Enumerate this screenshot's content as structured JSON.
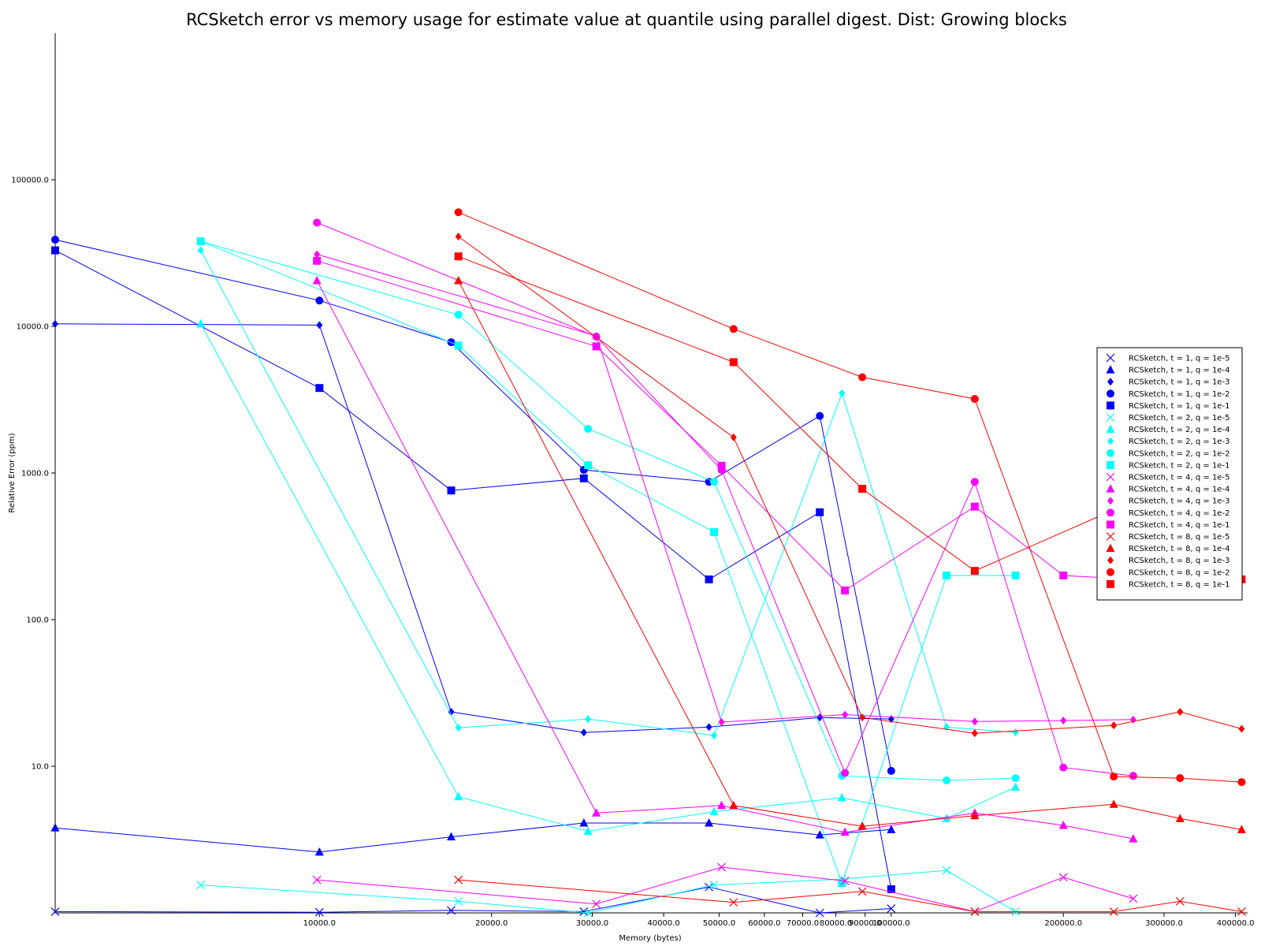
{
  "chart_data": {
    "type": "line",
    "title": "RCSketch error vs memory usage for estimate value at quantile using parallel digest. Dist: Growing blocks",
    "xlabel": "Memory (bytes)",
    "ylabel": "Relative Error (ppm)",
    "xscale": "log",
    "yscale": "log",
    "xlim": [
      3450,
      420000
    ],
    "ylim": [
      1,
      1000000
    ],
    "x_ticks": [
      {
        "value": 10000,
        "label": "10000.0"
      },
      {
        "value": 20000,
        "label": "20000.0"
      },
      {
        "value": 30000,
        "label": "30000.0"
      },
      {
        "value": 40000,
        "label": "40000.0"
      },
      {
        "value": 50000,
        "label": "50000.0"
      },
      {
        "value": 60000,
        "label": "60000.0"
      },
      {
        "value": 70000,
        "label": "70000.0"
      },
      {
        "value": 80000,
        "label": "80000.0"
      },
      {
        "value": 90000,
        "label": "90000.0"
      },
      {
        "value": 100000,
        "label": "100000.0"
      },
      {
        "value": 200000,
        "label": "200000.0"
      },
      {
        "value": 300000,
        "label": "300000.0"
      },
      {
        "value": 400000,
        "label": "400000.0"
      }
    ],
    "y_ticks": [
      {
        "value": 10,
        "label": "10.0"
      },
      {
        "value": 100,
        "label": "100.0"
      },
      {
        "value": 1000,
        "label": "1000.0"
      },
      {
        "value": 10000,
        "label": "10000.0"
      },
      {
        "value": 100000,
        "label": "100000.0"
      }
    ],
    "grid": false,
    "legend_position": "right",
    "series": [
      {
        "name": "RCSketch, t = 1, q = 1e-5",
        "color": "#0000ff",
        "marker": "x",
        "x": [
          3450,
          10000,
          17000,
          29000,
          48000,
          75000,
          100000
        ],
        "y": [
          1.02,
          1.01,
          1.04,
          1.02,
          1.5,
          1.0,
          1.07
        ]
      },
      {
        "name": "RCSketch, t = 1, q = 1e-4",
        "color": "#0000ff",
        "marker": "triangle",
        "x": [
          3450,
          10000,
          17000,
          29000,
          48000,
          75000,
          100000
        ],
        "y": [
          3.8,
          2.6,
          3.3,
          4.1,
          4.1,
          3.4,
          3.7
        ]
      },
      {
        "name": "RCSketch, t = 1, q = 1e-3",
        "color": "#0000ff",
        "marker": "diamond",
        "x": [
          3450,
          10000,
          17000,
          29000,
          48000,
          75000,
          100000
        ],
        "y": [
          10400,
          10200,
          23.5,
          17,
          18.5,
          21.5,
          21
        ]
      },
      {
        "name": "RCSketch, t = 1, q = 1e-2",
        "color": "#0000ff",
        "marker": "circle",
        "x": [
          3450,
          10000,
          17000,
          29000,
          48000,
          75000,
          100000
        ],
        "y": [
          39000,
          15000,
          7800,
          1050,
          870,
          2450,
          9.3
        ]
      },
      {
        "name": "RCSketch, t = 1, q = 1e-1",
        "color": "#0000ff",
        "marker": "square",
        "x": [
          3450,
          10000,
          17000,
          29000,
          48000,
          75000,
          100000
        ],
        "y": [
          33000,
          3800,
          760,
          920,
          188,
          540,
          1.45
        ]
      },
      {
        "name": "RCSketch, t = 2, q = 1e-5",
        "color": "#00ffff",
        "marker": "x",
        "x": [
          6200,
          17500,
          29500,
          49000,
          82000,
          125000,
          165000
        ],
        "y": [
          1.55,
          1.2,
          1.0,
          1.55,
          1.7,
          1.95,
          1.02
        ]
      },
      {
        "name": "RCSketch, t = 2, q = 1e-4",
        "color": "#00ffff",
        "marker": "triangle",
        "x": [
          6200,
          17500,
          29500,
          49000,
          82000,
          125000,
          165000
        ],
        "y": [
          10400,
          6.2,
          3.6,
          4.9,
          6.1,
          4.4,
          7.2
        ]
      },
      {
        "name": "RCSketch, t = 2, q = 1e-3",
        "color": "#00ffff",
        "marker": "diamond",
        "x": [
          6200,
          17500,
          29500,
          49000,
          82000,
          125000,
          165000
        ],
        "y": [
          33000,
          18.3,
          21,
          16.2,
          3500,
          18.5,
          17
        ]
      },
      {
        "name": "RCSketch, t = 2, q = 1e-2",
        "color": "#00ffff",
        "marker": "circle",
        "x": [
          6200,
          17500,
          29500,
          49000,
          82000,
          125000,
          165000
        ],
        "y": [
          38000,
          12000,
          2000,
          870,
          8.6,
          8.0,
          8.3
        ]
      },
      {
        "name": "RCSketch, t = 2, q = 1e-1",
        "color": "#00ffff",
        "marker": "square",
        "x": [
          6200,
          17500,
          29500,
          49000,
          82000,
          125000,
          165000
        ],
        "y": [
          38000,
          7400,
          1130,
          395,
          1.6,
          200,
          200
        ]
      },
      {
        "name": "RCSketch, t = 4, q = 1e-5",
        "color": "#ff00ff",
        "marker": "x",
        "x": [
          9900,
          30500,
          50500,
          83000,
          140000,
          200000,
          265000
        ],
        "y": [
          1.68,
          1.15,
          2.05,
          1.65,
          1.02,
          1.75,
          1.25
        ]
      },
      {
        "name": "RCSketch, t = 4, q = 1e-4",
        "color": "#ff00ff",
        "marker": "triangle",
        "x": [
          9900,
          30500,
          50500,
          83000,
          140000,
          200000,
          265000
        ],
        "y": [
          20500,
          4.8,
          5.4,
          3.55,
          4.8,
          3.95,
          3.2
        ]
      },
      {
        "name": "RCSketch, t = 4, q = 1e-3",
        "color": "#ff00ff",
        "marker": "diamond",
        "x": [
          9900,
          30500,
          50500,
          83000,
          140000,
          200000,
          265000
        ],
        "y": [
          31000,
          8600,
          20,
          22.5,
          20.2,
          20.5,
          20.8
        ]
      },
      {
        "name": "RCSketch, t = 4, q = 1e-2",
        "color": "#ff00ff",
        "marker": "circle",
        "x": [
          9900,
          30500,
          50500,
          83000,
          140000,
          200000,
          265000
        ],
        "y": [
          51000,
          8500,
          1050,
          9.0,
          870,
          9.8,
          8.6
        ]
      },
      {
        "name": "RCSketch, t = 4, q = 1e-1",
        "color": "#ff00ff",
        "marker": "square",
        "x": [
          9900,
          30500,
          50500,
          83000,
          140000,
          200000,
          265000
        ],
        "y": [
          28000,
          7300,
          1120,
          158,
          590,
          200,
          188
        ]
      },
      {
        "name": "RCSketch, t = 8, q = 1e-5",
        "color": "#ff0000",
        "marker": "x",
        "x": [
          17500,
          53000,
          89000,
          140000,
          245000,
          320000,
          410000
        ],
        "y": [
          1.68,
          1.18,
          1.4,
          1.02,
          1.02,
          1.2,
          1.02
        ]
      },
      {
        "name": "RCSketch, t = 8, q = 1e-4",
        "color": "#ff0000",
        "marker": "triangle",
        "x": [
          17500,
          53000,
          89000,
          140000,
          245000,
          320000,
          410000
        ],
        "y": [
          20500,
          5.4,
          3.9,
          4.6,
          5.5,
          4.4,
          3.7
        ]
      },
      {
        "name": "RCSketch, t = 8, q = 1e-3",
        "color": "#ff0000",
        "marker": "diamond",
        "x": [
          17500,
          53000,
          89000,
          140000,
          245000,
          320000,
          410000
        ],
        "y": [
          41000,
          1750,
          21.5,
          16.8,
          19,
          23.5,
          18
        ]
      },
      {
        "name": "RCSketch, t = 8, q = 1e-2",
        "color": "#ff0000",
        "marker": "circle",
        "x": [
          17500,
          53000,
          89000,
          140000,
          245000,
          320000,
          410000
        ],
        "y": [
          60000,
          9600,
          4500,
          3200,
          8.5,
          8.3,
          7.8
        ]
      },
      {
        "name": "RCSketch, t = 8, q = 1e-1",
        "color": "#ff0000",
        "marker": "square",
        "x": [
          17500,
          53000,
          89000,
          140000,
          245000,
          320000,
          410000
        ],
        "y": [
          30000,
          5700,
          780,
          215,
          560,
          580,
          188
        ]
      }
    ]
  }
}
